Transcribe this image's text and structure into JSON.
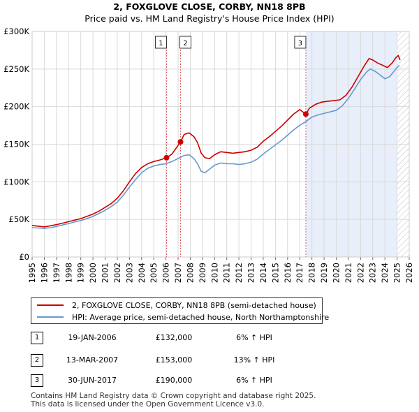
{
  "colors": {
    "property_line": "#cc0000",
    "hpi_line": "#6699cc",
    "shade": "#e8eefa",
    "marker_line": "#e06060",
    "grid": "#d9d9d9",
    "hatch": "#bbbbbb"
  },
  "chart_data": {
    "type": "line",
    "title": "2, FOXGLOVE CLOSE, CORBY, NN18 8PB",
    "subtitle": "Price paid vs. HM Land Registry's House Price Index (HPI)",
    "xlim": [
      1995,
      2026
    ],
    "ylim": [
      0,
      300000
    ],
    "y_ticks": [
      {
        "value": 0,
        "label": "£0"
      },
      {
        "value": 50000,
        "label": "£50K"
      },
      {
        "value": 100000,
        "label": "£100K"
      },
      {
        "value": 150000,
        "label": "£150K"
      },
      {
        "value": 200000,
        "label": "£200K"
      },
      {
        "value": 250000,
        "label": "£250K"
      },
      {
        "value": 300000,
        "label": "£300K"
      }
    ],
    "x_ticks": [
      "1995",
      "1996",
      "1997",
      "1998",
      "1999",
      "2000",
      "2001",
      "2002",
      "2003",
      "2004",
      "2005",
      "2006",
      "2007",
      "2008",
      "2009",
      "2010",
      "2011",
      "2012",
      "2013",
      "2014",
      "2015",
      "2016",
      "2017",
      "2018",
      "2019",
      "2020",
      "2021",
      "2022",
      "2023",
      "2024",
      "2025",
      "2026"
    ],
    "shaded_from": 2017.5,
    "hatched_from": 2025.0,
    "series": [
      {
        "name": "2, FOXGLOVE CLOSE, CORBY, NN18 8PB (semi-detached house)",
        "points": [
          [
            1995.0,
            42000
          ],
          [
            1995.5,
            41000
          ],
          [
            1996.0,
            40000
          ],
          [
            1996.5,
            41500
          ],
          [
            1997.0,
            43000
          ],
          [
            1997.5,
            45000
          ],
          [
            1998.0,
            47000
          ],
          [
            1998.5,
            49000
          ],
          [
            1999.0,
            51000
          ],
          [
            1999.5,
            54000
          ],
          [
            2000.0,
            57000
          ],
          [
            2000.5,
            61000
          ],
          [
            2001.0,
            66000
          ],
          [
            2001.5,
            71000
          ],
          [
            2002.0,
            78000
          ],
          [
            2002.5,
            88000
          ],
          [
            2003.0,
            100000
          ],
          [
            2003.5,
            111000
          ],
          [
            2004.0,
            119000
          ],
          [
            2004.5,
            124000
          ],
          [
            2005.0,
            127000
          ],
          [
            2005.5,
            129000
          ],
          [
            2006.05,
            132000
          ],
          [
            2006.5,
            137000
          ],
          [
            2007.2,
            153000
          ],
          [
            2007.5,
            163000
          ],
          [
            2007.9,
            165000
          ],
          [
            2008.3,
            160000
          ],
          [
            2008.6,
            152000
          ],
          [
            2008.9,
            138000
          ],
          [
            2009.2,
            132000
          ],
          [
            2009.6,
            131000
          ],
          [
            2010.0,
            136000
          ],
          [
            2010.5,
            140000
          ],
          [
            2011.0,
            139000
          ],
          [
            2011.5,
            138000
          ],
          [
            2012.0,
            139000
          ],
          [
            2012.5,
            140000
          ],
          [
            2013.0,
            142000
          ],
          [
            2013.5,
            146000
          ],
          [
            2014.0,
            154000
          ],
          [
            2014.5,
            160000
          ],
          [
            2015.0,
            167000
          ],
          [
            2015.5,
            174000
          ],
          [
            2016.0,
            182000
          ],
          [
            2016.5,
            190000
          ],
          [
            2017.0,
            196000
          ],
          [
            2017.5,
            190000
          ],
          [
            2017.8,
            198000
          ],
          [
            2018.3,
            203000
          ],
          [
            2018.8,
            206000
          ],
          [
            2019.3,
            207000
          ],
          [
            2019.8,
            208000
          ],
          [
            2020.3,
            209000
          ],
          [
            2020.8,
            215000
          ],
          [
            2021.3,
            226000
          ],
          [
            2021.8,
            240000
          ],
          [
            2022.3,
            254000
          ],
          [
            2022.7,
            264000
          ],
          [
            2023.0,
            262000
          ],
          [
            2023.4,
            258000
          ],
          [
            2023.8,
            255000
          ],
          [
            2024.2,
            252000
          ],
          [
            2024.6,
            258000
          ],
          [
            2024.9,
            265000
          ],
          [
            2025.1,
            268000
          ],
          [
            2025.25,
            262000
          ]
        ]
      },
      {
        "name": "HPI: Average price, semi-detached house, North Northamptonshire",
        "points": [
          [
            1995.0,
            39000
          ],
          [
            1995.5,
            38500
          ],
          [
            1996.0,
            38000
          ],
          [
            1996.5,
            39000
          ],
          [
            1997.0,
            40500
          ],
          [
            1997.5,
            42500
          ],
          [
            1998.0,
            44500
          ],
          [
            1998.5,
            46500
          ],
          [
            1999.0,
            48500
          ],
          [
            1999.5,
            51000
          ],
          [
            2000.0,
            54000
          ],
          [
            2000.5,
            58000
          ],
          [
            2001.0,
            62000
          ],
          [
            2001.5,
            67000
          ],
          [
            2002.0,
            73000
          ],
          [
            2002.5,
            82000
          ],
          [
            2003.0,
            93000
          ],
          [
            2003.5,
            103000
          ],
          [
            2004.0,
            112000
          ],
          [
            2004.5,
            118000
          ],
          [
            2005.0,
            121000
          ],
          [
            2005.5,
            123000
          ],
          [
            2006.0,
            124000
          ],
          [
            2006.5,
            127000
          ],
          [
            2007.0,
            131000
          ],
          [
            2007.5,
            135000
          ],
          [
            2007.9,
            136000
          ],
          [
            2008.3,
            131000
          ],
          [
            2008.6,
            124000
          ],
          [
            2008.9,
            114000
          ],
          [
            2009.2,
            112000
          ],
          [
            2009.6,
            117000
          ],
          [
            2010.0,
            122000
          ],
          [
            2010.5,
            125000
          ],
          [
            2011.0,
            124000
          ],
          [
            2011.5,
            124000
          ],
          [
            2012.0,
            123000
          ],
          [
            2012.5,
            124000
          ],
          [
            2013.0,
            126000
          ],
          [
            2013.5,
            130000
          ],
          [
            2014.0,
            137000
          ],
          [
            2014.5,
            143000
          ],
          [
            2015.0,
            149000
          ],
          [
            2015.5,
            155000
          ],
          [
            2016.0,
            162000
          ],
          [
            2016.5,
            169000
          ],
          [
            2017.0,
            175000
          ],
          [
            2017.5,
            180000
          ],
          [
            2018.0,
            186000
          ],
          [
            2018.5,
            189000
          ],
          [
            2019.0,
            191000
          ],
          [
            2019.5,
            193000
          ],
          [
            2020.0,
            195000
          ],
          [
            2020.5,
            201000
          ],
          [
            2021.0,
            211000
          ],
          [
            2021.5,
            223000
          ],
          [
            2022.0,
            236000
          ],
          [
            2022.5,
            246000
          ],
          [
            2022.8,
            250000
          ],
          [
            2023.2,
            247000
          ],
          [
            2023.6,
            242000
          ],
          [
            2024.0,
            237000
          ],
          [
            2024.4,
            240000
          ],
          [
            2024.8,
            248000
          ],
          [
            2025.0,
            252000
          ],
          [
            2025.2,
            255000
          ]
        ]
      }
    ],
    "sales": [
      {
        "id": "1",
        "x": 2006.05,
        "value": 132000
      },
      {
        "id": "2",
        "x": 2007.2,
        "value": 153000
      },
      {
        "id": "3",
        "x": 2017.5,
        "value": 190000
      }
    ]
  },
  "legend": {
    "property_label": "2, FOXGLOVE CLOSE, CORBY, NN18 8PB (semi-detached house)",
    "hpi_label": "HPI: Average price, semi-detached house, North Northamptonshire"
  },
  "transactions": [
    {
      "id": "1",
      "date": "19-JAN-2006",
      "price": "£132,000",
      "hpi": "6% ↑ HPI"
    },
    {
      "id": "2",
      "date": "13-MAR-2007",
      "price": "£153,000",
      "hpi": "13% ↑ HPI"
    },
    {
      "id": "3",
      "date": "30-JUN-2017",
      "price": "£190,000",
      "hpi": "6% ↑ HPI"
    }
  ],
  "footer": {
    "line1": "Contains HM Land Registry data © Crown copyright and database right 2025.",
    "line2": "This data is licensed under the Open Government Licence v3.0."
  }
}
